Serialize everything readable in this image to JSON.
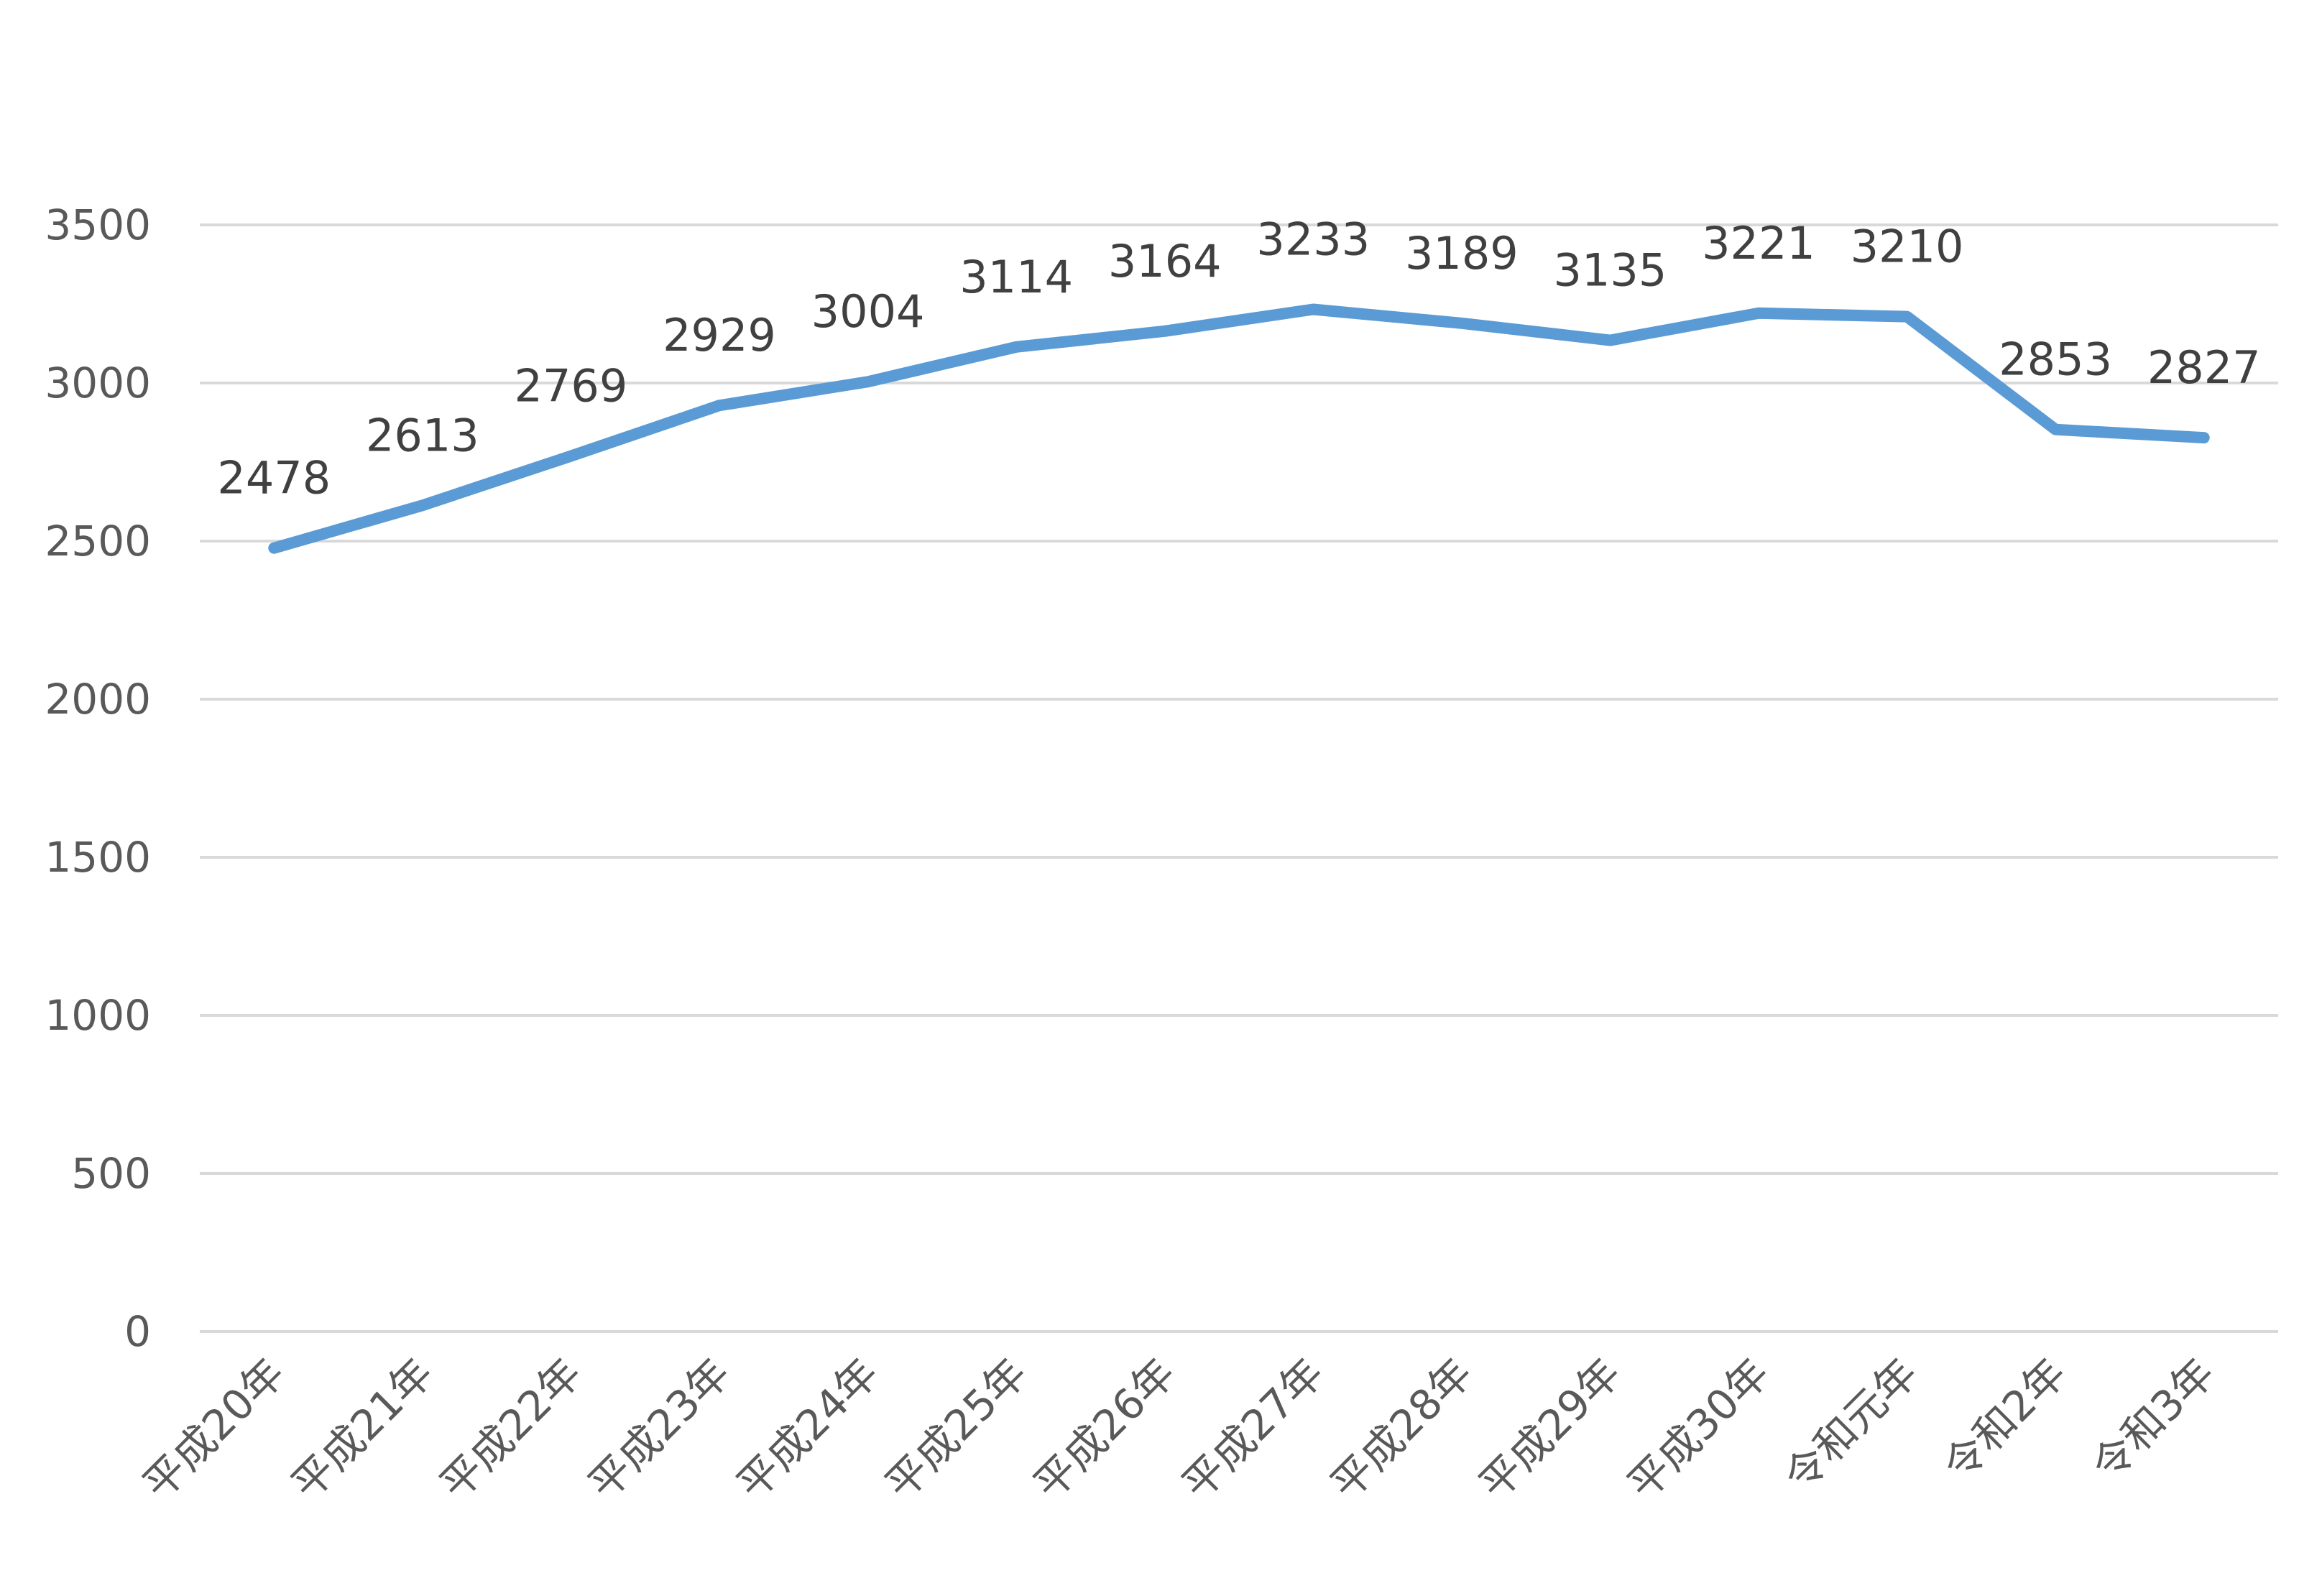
{
  "chart_data": {
    "type": "line",
    "title": "",
    "xlabel": "",
    "ylabel": "",
    "categories": [
      "平成20年",
      "平成21年",
      "平成22年",
      "平成23年",
      "平成24年",
      "平成25年",
      "平成26年",
      "平成27年",
      "平成28年",
      "平成29年",
      "平成30年",
      "令和元年",
      "令和2年",
      "令和3年"
    ],
    "series": [
      {
        "values": [
          2478,
          2613,
          2769,
          2929,
          3004,
          3114,
          3164,
          3233,
          3189,
          3135,
          3221,
          3210,
          2853,
          2827
        ],
        "color": "#5b9bd5"
      }
    ],
    "ylim": [
      0,
      3500
    ],
    "yticks": [
      0,
      500,
      1000,
      1500,
      2000,
      2500,
      3000,
      3500
    ],
    "grid": true,
    "legend": "none",
    "data_labels": true
  }
}
